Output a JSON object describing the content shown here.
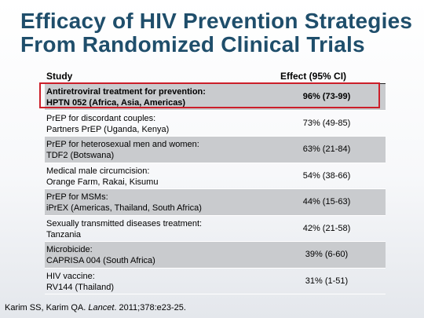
{
  "title": {
    "line1": "Efficacy of HIV Prevention Strategies",
    "line2": "From Randomized Clinical Trials"
  },
  "table": {
    "headers": {
      "study": "Study",
      "effect": "Effect (95% CI)"
    },
    "rows": [
      {
        "line1": "Antiretroviral treatment for prevention:",
        "line2": "HPTN 052 (Africa, Asia, Americas)",
        "effect": "96% (73-99)"
      },
      {
        "line1": "PrEP for discordant couples:",
        "line2": "Partners PrEP (Uganda, Kenya)",
        "effect": "73% (49-85)"
      },
      {
        "line1": "PrEP for heterosexual men and women:",
        "line2": "TDF2 (Botswana)",
        "effect": "63% (21-84)"
      },
      {
        "line1": "Medical male circumcision:",
        "line2": "Orange Farm, Rakai, Kisumu",
        "effect": "54% (38-66)"
      },
      {
        "line1": "PrEP for MSMs:",
        "line2": "iPrEX (Americas, Thailand, South Africa)",
        "effect": "44% (15-63)"
      },
      {
        "line1": "Sexually transmitted diseases treatment:",
        "line2": "Tanzania",
        "effect": "42% (21-58)"
      },
      {
        "line1": "Microbicide:",
        "line2": "CAPRISA 004 (South Africa)",
        "effect": "39% (6-60)"
      },
      {
        "line1": "HIV vaccine:",
        "line2": "RV144 (Thailand)",
        "effect": "31% (1-51)"
      }
    ]
  },
  "citation": {
    "authors": "Karim SS, Karim QA. ",
    "journal": "Lancet",
    "details": ". 2011;378:e23-25."
  },
  "colors": {
    "title": "#1f4e6b",
    "row_shade": "#c9cbce",
    "highlight_border": "#cc1f2a"
  }
}
